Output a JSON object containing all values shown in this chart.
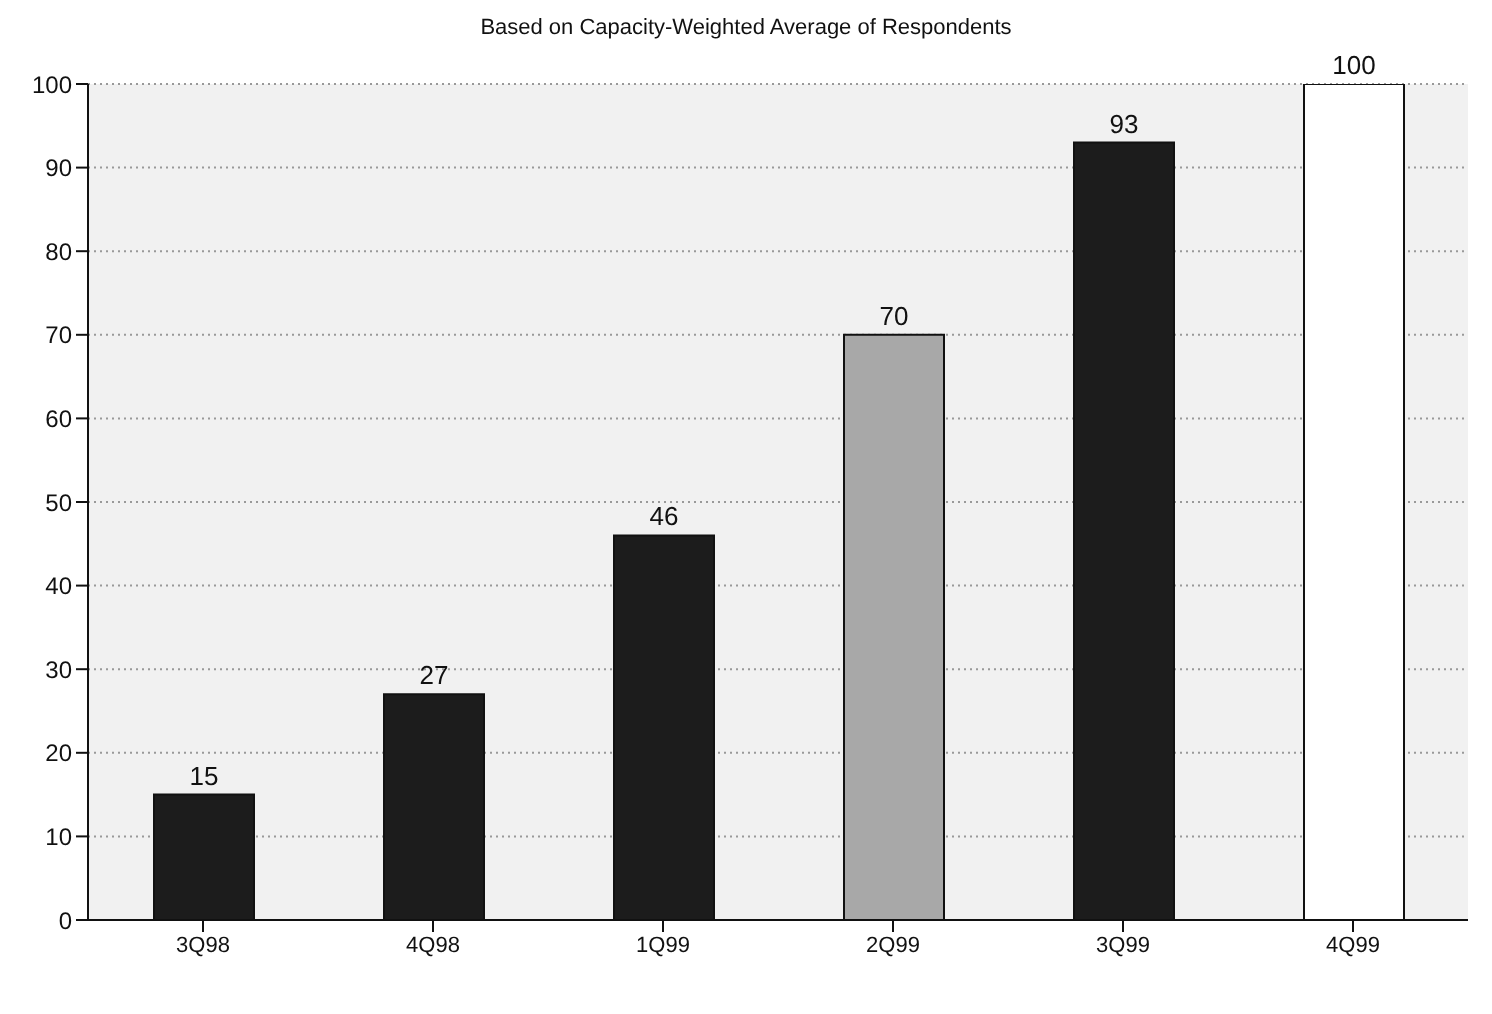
{
  "chart_data": {
    "type": "bar",
    "subtitle": "Based on Capacity-Weighted Average of Respondents",
    "categories": [
      "3Q98",
      "4Q98",
      "1Q99",
      "2Q99",
      "3Q99",
      "4Q99"
    ],
    "values": [
      15,
      27,
      46,
      70,
      93,
      100
    ],
    "colors": [
      "#1c1c1c",
      "#1c1c1c",
      "#1c1c1c",
      "#a8a8a8",
      "#1c1c1c",
      "#ffffff"
    ],
    "ylim": [
      0,
      100
    ],
    "yticks": [
      0,
      10,
      20,
      30,
      40,
      50,
      60,
      70,
      80,
      90,
      100
    ],
    "grid": "y",
    "data_labels": true
  }
}
